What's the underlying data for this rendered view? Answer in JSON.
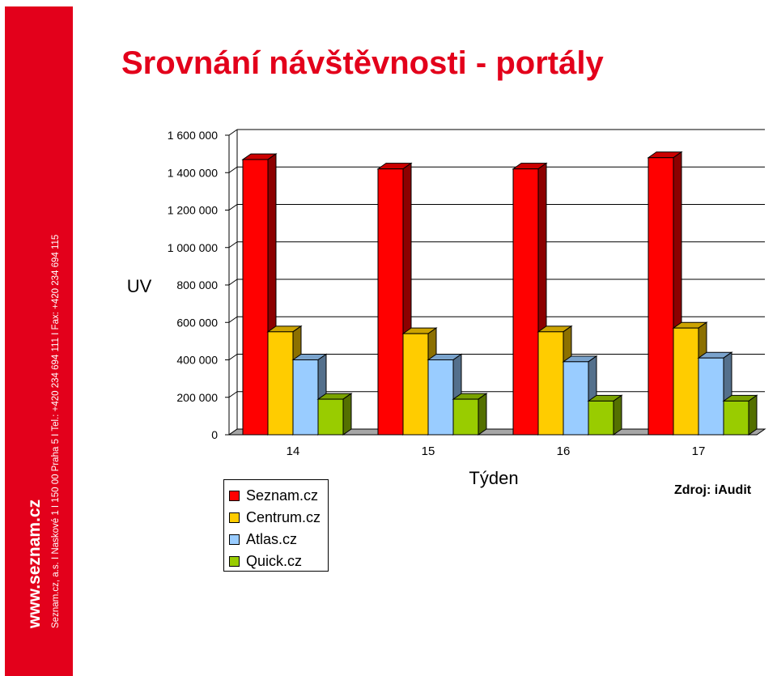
{
  "sidebar": {
    "brand": "www.seznam.cz",
    "contact": "Seznam.cz, a.s.  I  Naskové 1  I  150 00  Praha 5  I  Tel.: +420 234 694 111  I  Fax: +420 234 694 115",
    "color": "#e3001b"
  },
  "title": "Srovnání návštěvnosti - portály",
  "source": "Zdroj: iAudit",
  "chart_data": {
    "type": "bar",
    "style": "3d-clustered",
    "categories": [
      "14",
      "15",
      "16",
      "17"
    ],
    "xlabel": "Týden",
    "ylabel": "UV",
    "ylim": [
      0,
      1600000
    ],
    "yticks": [
      0,
      200000,
      400000,
      600000,
      800000,
      1000000,
      1200000,
      1400000,
      1600000
    ],
    "ytick_labels": [
      "0",
      "200 000",
      "400 000",
      "600 000",
      "800 000",
      "1 000 000",
      "1 200 000",
      "1 400 000",
      "1 600 000"
    ],
    "grid": true,
    "legend_position": "bottom-left",
    "series": [
      {
        "name": "Seznam.cz",
        "color": "#ff0000",
        "values": [
          1470000,
          1420000,
          1420000,
          1480000
        ]
      },
      {
        "name": "Centrum.cz",
        "color": "#ffcc00",
        "values": [
          550000,
          540000,
          550000,
          570000
        ]
      },
      {
        "name": "Atlas.cz",
        "color": "#99ccff",
        "values": [
          400000,
          400000,
          390000,
          410000
        ]
      },
      {
        "name": "Quick.cz",
        "color": "#99cc00",
        "values": [
          190000,
          190000,
          180000,
          180000
        ]
      }
    ]
  }
}
